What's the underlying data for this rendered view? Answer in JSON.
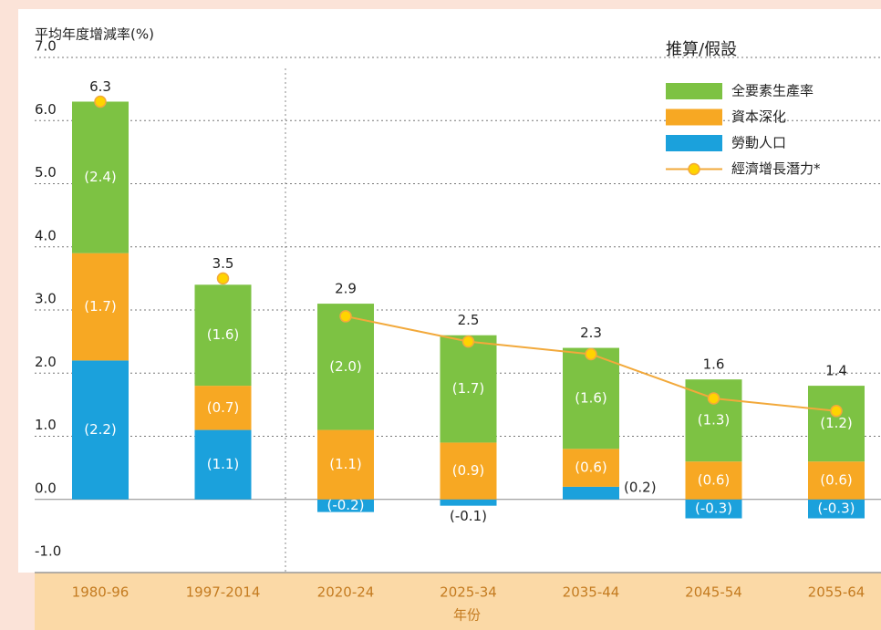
{
  "chart_data": {
    "type": "stacked-bar-line",
    "y_axis_label": "平均年度增減率(%)",
    "x_axis_label": "年份",
    "legend_title": "推算/假設",
    "categories": [
      "1980-96",
      "1997-2014",
      "2020-24",
      "2025-34",
      "2035-44",
      "2045-54",
      "2055-64"
    ],
    "series": [
      {
        "name": "全要素生產率",
        "color": "#7dc243",
        "type": "bar",
        "values": [
          2.4,
          1.6,
          2.0,
          1.7,
          1.6,
          1.3,
          1.2
        ],
        "value_labels": [
          "(2.4)",
          "(1.6)",
          "(2.0)",
          "(1.7)",
          "(1.6)",
          "(1.3)",
          "(1.2)"
        ]
      },
      {
        "name": "資本深化",
        "color": "#f7a823",
        "type": "bar",
        "values": [
          1.7,
          0.7,
          1.1,
          0.9,
          0.6,
          0.6,
          0.6
        ],
        "value_labels": [
          "(1.7)",
          "(0.7)",
          "(1.1)",
          "(0.9)",
          "(0.6)",
          "(0.6)",
          "(0.6)"
        ]
      },
      {
        "name": "勞動人口",
        "color": "#1ba1dc",
        "type": "bar",
        "values": [
          2.2,
          1.1,
          -0.2,
          -0.1,
          0.2,
          -0.3,
          -0.3
        ],
        "value_labels": [
          "(2.2)",
          "(1.1)",
          "(-0.2)",
          "(-0.1)",
          "(0.2)",
          "(-0.3)",
          "(-0.3)"
        ]
      },
      {
        "name": "經濟增長潛力*",
        "color": "#f2a93b",
        "type": "line",
        "values": [
          6.3,
          3.5,
          2.9,
          2.5,
          2.3,
          1.6,
          1.4
        ]
      }
    ],
    "ylim": [
      -1,
      7
    ],
    "yticks": [
      {
        "value": -1,
        "label": "-1.0"
      },
      {
        "value": 0,
        "label": "0.0"
      },
      {
        "value": 1,
        "label": "1.0"
      },
      {
        "value": 2,
        "label": "2.0"
      },
      {
        "value": 3,
        "label": "3.0"
      },
      {
        "value": 4,
        "label": "4.0"
      },
      {
        "value": 5,
        "label": "5.0"
      },
      {
        "value": 6,
        "label": "6.0"
      },
      {
        "value": 7,
        "label": "7.0"
      }
    ],
    "grid": true,
    "legend": "top-right"
  }
}
